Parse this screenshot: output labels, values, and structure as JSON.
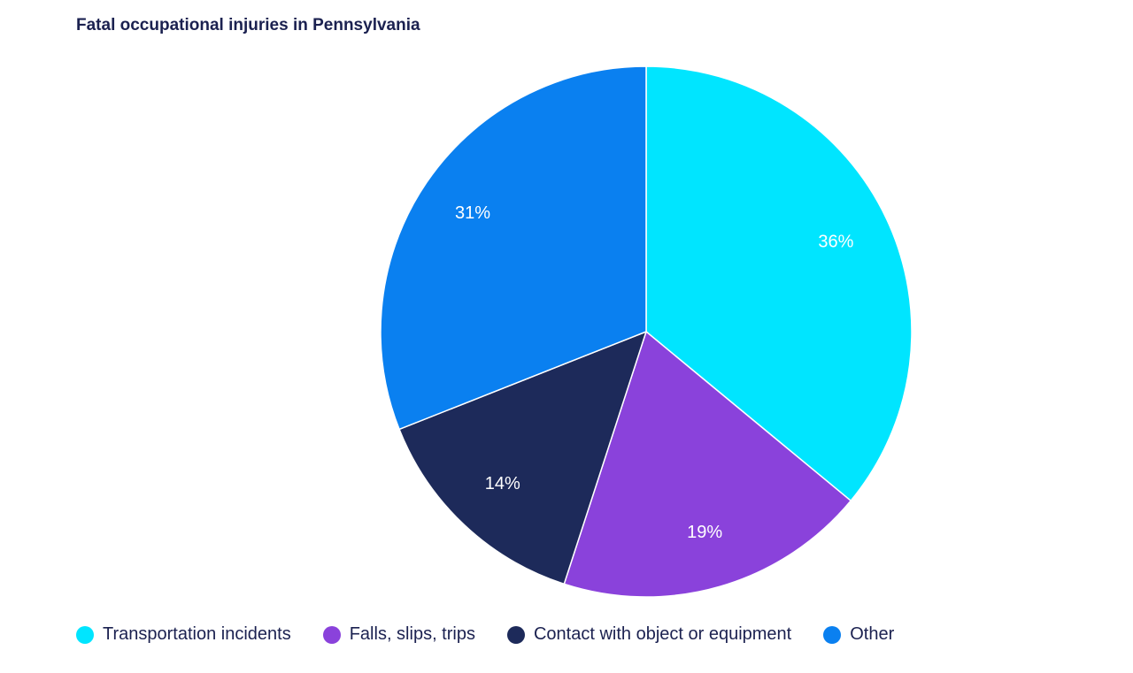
{
  "chart_data": {
    "type": "pie",
    "title": "Fatal occupational injuries in Pennsylvania",
    "legend_position": "bottom",
    "slices": [
      {
        "name": "Transportation incidents",
        "value": 36,
        "label": "36%",
        "color": "#00e5ff"
      },
      {
        "name": "Falls, slips, trips",
        "value": 19,
        "label": "19%",
        "color": "#8a42db"
      },
      {
        "name": "Contact with object or equipment",
        "value": 14,
        "label": "14%",
        "color": "#1d2a5a"
      },
      {
        "name": "Other",
        "value": 31,
        "label": "31%",
        "color": "#0a80f0"
      }
    ]
  }
}
